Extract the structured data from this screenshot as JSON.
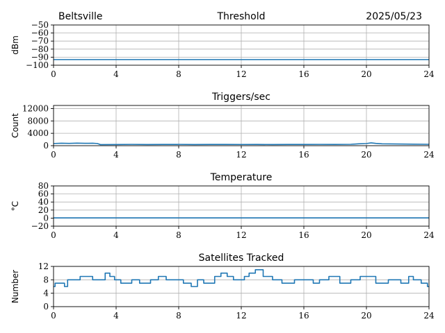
{
  "header": {
    "station": "Beltsville",
    "date": "2025/05/23"
  },
  "chart_data": [
    {
      "type": "line",
      "title": "Threshold",
      "ylabel": "dBm",
      "xlim": [
        0,
        24
      ],
      "ylim": [
        -100,
        -50
      ],
      "xticks": [
        0,
        4,
        8,
        12,
        16,
        20,
        24
      ],
      "yticks": [
        -100,
        -90,
        -80,
        -70,
        -60,
        -50
      ],
      "ytick_labels": [
        "−100",
        "−90",
        "−80",
        "−70",
        "−60",
        "−50"
      ],
      "grid": true,
      "series": [
        {
          "color": "#1f77b4",
          "x": [
            0,
            24
          ],
          "y": [
            -93,
            -93
          ]
        }
      ]
    },
    {
      "type": "line",
      "title": "Triggers/sec",
      "ylabel": "Count",
      "xlim": [
        0,
        24
      ],
      "ylim": [
        0,
        13000
      ],
      "xticks": [
        0,
        4,
        8,
        12,
        16,
        20,
        24
      ],
      "yticks": [
        0,
        4000,
        8000,
        12000
      ],
      "ytick_labels": [
        "0",
        "4000",
        "8000",
        "12000"
      ],
      "grid": true,
      "series": [
        {
          "color": "#1f77b4",
          "x": [
            0,
            0.5,
            1,
            1.5,
            2,
            2.5,
            2.8,
            3,
            4,
            5,
            6,
            7,
            8,
            9,
            10,
            11,
            12,
            13,
            14,
            15,
            16,
            17,
            18,
            19,
            19.5,
            20,
            20.3,
            20.6,
            21,
            22,
            23,
            24
          ],
          "y": [
            700,
            800,
            750,
            820,
            760,
            800,
            700,
            350,
            380,
            420,
            380,
            400,
            420,
            380,
            400,
            410,
            390,
            400,
            380,
            410,
            400,
            420,
            400,
            450,
            600,
            700,
            900,
            750,
            600,
            550,
            500,
            450
          ]
        }
      ]
    },
    {
      "type": "line",
      "title": "Temperature",
      "ylabel": "°C",
      "xlim": [
        0,
        24
      ],
      "ylim": [
        -20,
        80
      ],
      "xticks": [
        0,
        4,
        8,
        12,
        16,
        20,
        24
      ],
      "yticks": [
        -20,
        0,
        20,
        40,
        60,
        80
      ],
      "ytick_labels": [
        "−20",
        "0",
        "20",
        "40",
        "60",
        "80"
      ],
      "grid": true,
      "series": [
        {
          "color": "#1f77b4",
          "x": [
            0,
            24
          ],
          "y": [
            0.5,
            0.5
          ]
        }
      ]
    },
    {
      "type": "line",
      "title": "Satellites Tracked",
      "ylabel": "Number",
      "xlim": [
        0,
        24
      ],
      "ylim": [
        0,
        12
      ],
      "xticks": [
        0,
        4,
        8,
        12,
        16,
        20,
        24
      ],
      "yticks": [
        0,
        4,
        8,
        12
      ],
      "ytick_labels": [
        "0",
        "4",
        "8",
        "12"
      ],
      "grid": true,
      "series": [
        {
          "color": "#1f77b4",
          "step": true,
          "x": [
            0,
            0.1,
            0.7,
            0.9,
            1.7,
            2.5,
            3.3,
            3.6,
            3.9,
            4.3,
            5.0,
            5.5,
            6.2,
            6.7,
            7.2,
            8.3,
            8.8,
            9.2,
            9.6,
            10.3,
            10.7,
            11.1,
            11.5,
            12.2,
            12.5,
            12.9,
            13.4,
            14.0,
            14.6,
            15.4,
            16.6,
            17.0,
            17.6,
            18.3,
            19.0,
            19.6,
            20.6,
            21.4,
            22.2,
            22.7,
            23.0,
            23.5,
            23.9
          ],
          "y": [
            6,
            7,
            6,
            8,
            9,
            8,
            10,
            9,
            8,
            7,
            8,
            7,
            8,
            9,
            8,
            7,
            6,
            8,
            7,
            9,
            10,
            9,
            8,
            9,
            10,
            11,
            9,
            8,
            7,
            8,
            7,
            8,
            9,
            7,
            8,
            9,
            7,
            8,
            7,
            9,
            8,
            7,
            6
          ]
        }
      ]
    }
  ]
}
